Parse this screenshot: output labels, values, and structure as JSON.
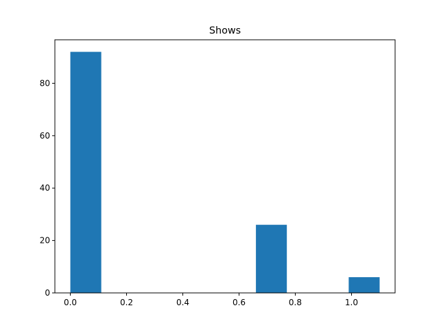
{
  "chart_data": {
    "type": "bar",
    "title": "Shows",
    "xlabel": "",
    "ylabel": "",
    "bins": [
      {
        "x0": 0.0,
        "x1": 0.11,
        "count": 92
      },
      {
        "x0": 0.11,
        "x1": 0.22,
        "count": 0
      },
      {
        "x0": 0.22,
        "x1": 0.33,
        "count": 0
      },
      {
        "x0": 0.33,
        "x1": 0.44,
        "count": 0
      },
      {
        "x0": 0.44,
        "x1": 0.55,
        "count": 0
      },
      {
        "x0": 0.55,
        "x1": 0.66,
        "count": 0
      },
      {
        "x0": 0.66,
        "x1": 0.77,
        "count": 26
      },
      {
        "x0": 0.77,
        "x1": 0.88,
        "count": 0
      },
      {
        "x0": 0.88,
        "x1": 0.99,
        "count": 0
      },
      {
        "x0": 0.99,
        "x1": 1.1,
        "count": 6
      }
    ],
    "xlim": [
      -0.055,
      1.155
    ],
    "ylim": [
      0,
      96.6
    ],
    "xticks": [
      0.0,
      0.2,
      0.4,
      0.6,
      0.8,
      1.0
    ],
    "xtick_labels": [
      "0.0",
      "0.2",
      "0.4",
      "0.6",
      "0.8",
      "1.0"
    ],
    "yticks": [
      0,
      20,
      40,
      60,
      80
    ],
    "ytick_labels": [
      "0",
      "20",
      "40",
      "60",
      "80"
    ],
    "bar_color": "#1f77b4",
    "grid": false,
    "legend": "none"
  }
}
